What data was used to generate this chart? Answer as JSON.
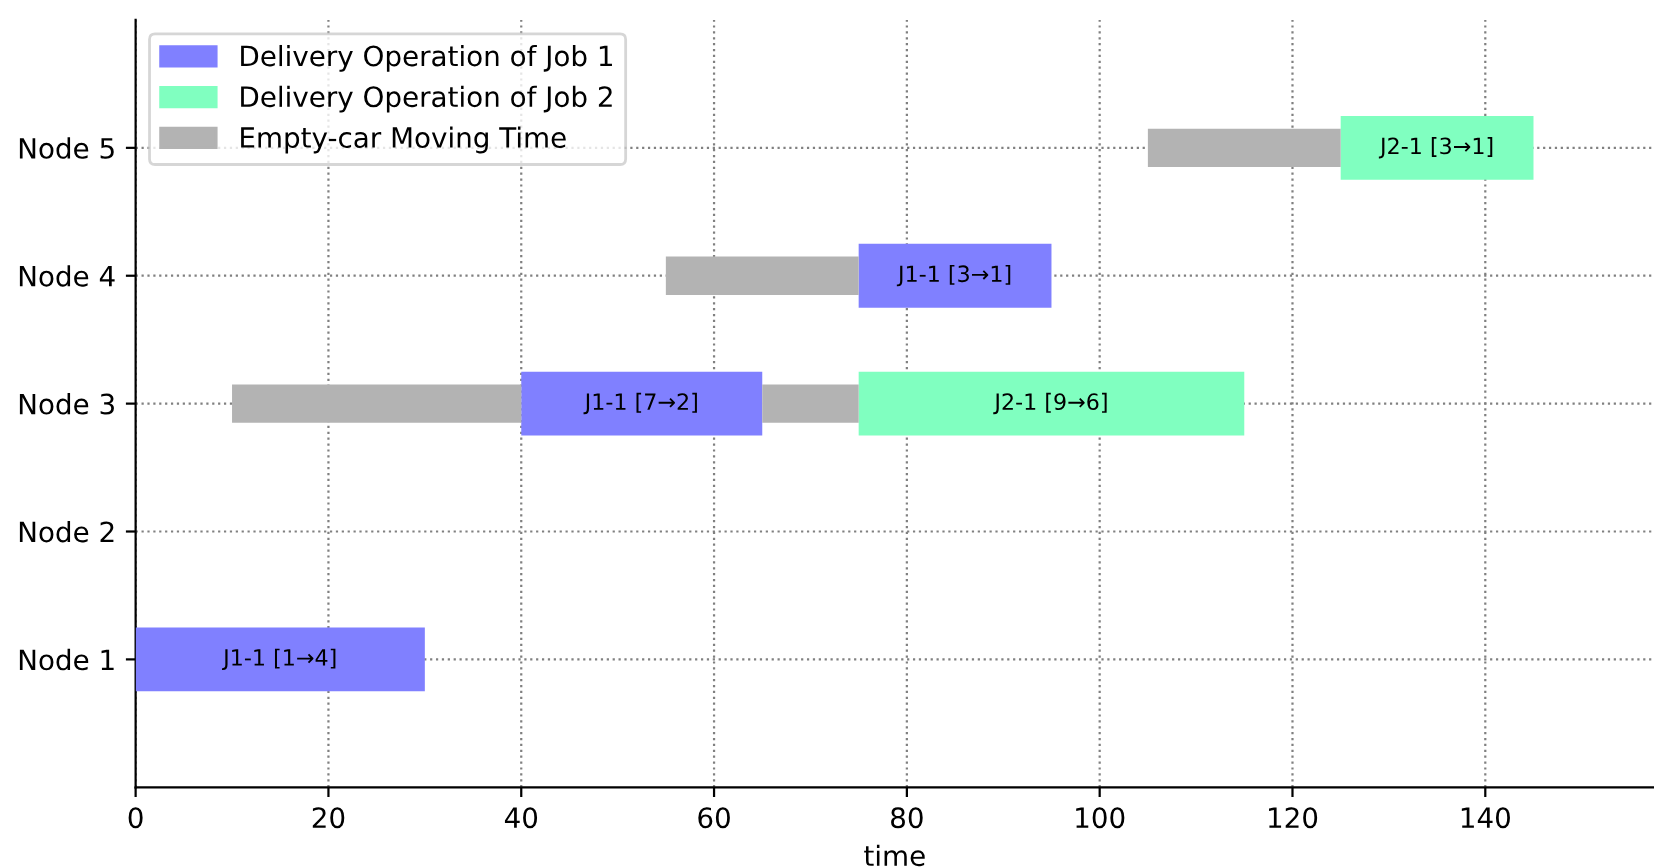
{
  "chart_data": {
    "type": "bar",
    "orientation": "horizontal",
    "xlabel": "time",
    "categories": [
      "Node 5",
      "Node 4",
      "Node 3",
      "Node 2",
      "Node 1"
    ],
    "series": [
      {
        "name": "Delivery Operation of Job 1",
        "color": "#8080ff",
        "values": [
          null,
          20,
          25,
          null,
          30
        ],
        "base": [
          null,
          75,
          40,
          null,
          0
        ],
        "value_labels": [
          null,
          "J1-1 [3→1]",
          "J1-1 [7→2]",
          null,
          "J1-1 [1→4]"
        ]
      },
      {
        "name": "Delivery Operation of Job 2",
        "color": "#80ffc0",
        "values": [
          20,
          null,
          40,
          null,
          null
        ],
        "base": [
          125,
          null,
          75,
          null,
          null
        ],
        "value_labels": [
          "J2-1 [3→1]",
          null,
          "J2-1 [9→6]",
          null,
          null
        ]
      },
      {
        "name": "Empty-car Moving Time",
        "color": "#b3b3b3",
        "values": [
          20,
          20,
          30,
          null,
          null
        ],
        "base": [
          105,
          55,
          10,
          null,
          null
        ]
      },
      {
        "color": "#b3b3b3",
        "values": [
          null,
          null,
          10,
          null,
          null
        ],
        "base": [
          null,
          null,
          65,
          null,
          null
        ]
      }
    ],
    "xlim": [
      0,
      157.5
    ],
    "xticks": [
      0,
      20,
      40,
      60,
      80,
      100,
      120,
      140
    ],
    "grid": true,
    "legend": "top left"
  }
}
